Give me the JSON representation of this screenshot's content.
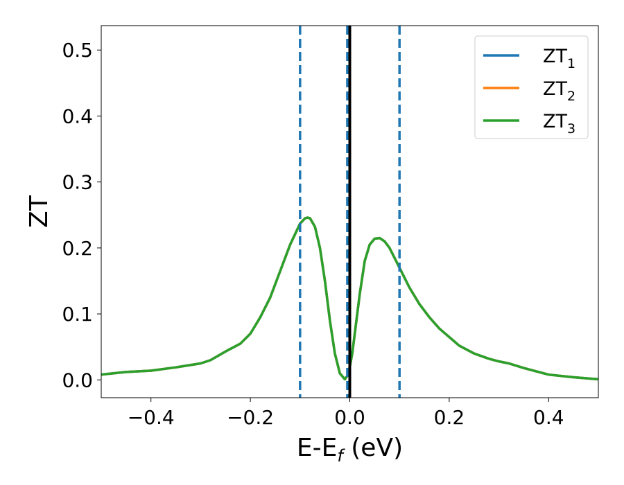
{
  "chart_data": {
    "type": "line",
    "xlabel": {
      "main": "E-E",
      "sub": "f",
      "suffix": " (eV)"
    },
    "ylabel": "ZT",
    "xlim": [
      -0.5,
      0.5
    ],
    "ylim": [
      -0.027,
      0.537
    ],
    "xticks": [
      {
        "value": -0.4,
        "label": "−0.4"
      },
      {
        "value": -0.2,
        "label": "−0.2"
      },
      {
        "value": 0.0,
        "label": "0.0"
      },
      {
        "value": 0.2,
        "label": "0.2"
      },
      {
        "value": 0.4,
        "label": "0.4"
      }
    ],
    "yticks": [
      {
        "value": 0.0,
        "label": "0.0"
      },
      {
        "value": 0.1,
        "label": "0.1"
      },
      {
        "value": 0.2,
        "label": "0.2"
      },
      {
        "value": 0.3,
        "label": "0.3"
      },
      {
        "value": 0.4,
        "label": "0.4"
      },
      {
        "value": 0.5,
        "label": "0.5"
      }
    ],
    "grid": false,
    "legend_position": "top-right",
    "series": [
      {
        "name": "ZT",
        "sub": "1",
        "color": "#1f77b4"
      },
      {
        "name": "ZT",
        "sub": "2",
        "color": "#ff7f0e"
      },
      {
        "name": "ZT",
        "sub": "3",
        "color": "#2ca02c"
      }
    ],
    "x": [
      -0.5,
      -0.45,
      -0.4,
      -0.35,
      -0.3,
      -0.28,
      -0.25,
      -0.22,
      -0.2,
      -0.18,
      -0.16,
      -0.14,
      -0.12,
      -0.1,
      -0.09,
      -0.085,
      -0.08,
      -0.07,
      -0.06,
      -0.05,
      -0.04,
      -0.03,
      -0.02,
      -0.01,
      -0.005,
      0.0,
      0.005,
      0.01,
      0.02,
      0.03,
      0.04,
      0.05,
      0.06,
      0.07,
      0.08,
      0.09,
      0.1,
      0.12,
      0.14,
      0.16,
      0.18,
      0.2,
      0.22,
      0.25,
      0.28,
      0.3,
      0.32,
      0.35,
      0.4,
      0.45,
      0.5
    ],
    "y": [
      0.008,
      0.012,
      0.014,
      0.019,
      0.025,
      0.03,
      0.043,
      0.055,
      0.07,
      0.095,
      0.125,
      0.165,
      0.205,
      0.237,
      0.245,
      0.246,
      0.245,
      0.232,
      0.2,
      0.15,
      0.09,
      0.04,
      0.01,
      0.001,
      0.006,
      0.02,
      0.04,
      0.07,
      0.13,
      0.18,
      0.205,
      0.214,
      0.215,
      0.21,
      0.2,
      0.185,
      0.17,
      0.14,
      0.115,
      0.095,
      0.078,
      0.065,
      0.052,
      0.04,
      0.032,
      0.028,
      0.025,
      0.018,
      0.008,
      0.004,
      0.001
    ],
    "vlines": [
      {
        "x": -0.1,
        "color": "#1f77b4",
        "style": "dashed"
      },
      {
        "x": -0.005,
        "color": "#1f77b4",
        "style": "dashed"
      },
      {
        "x": 0.1,
        "color": "#1f77b4",
        "style": "dashed"
      },
      {
        "x": 0.0,
        "color": "#000000",
        "style": "solid"
      }
    ]
  }
}
